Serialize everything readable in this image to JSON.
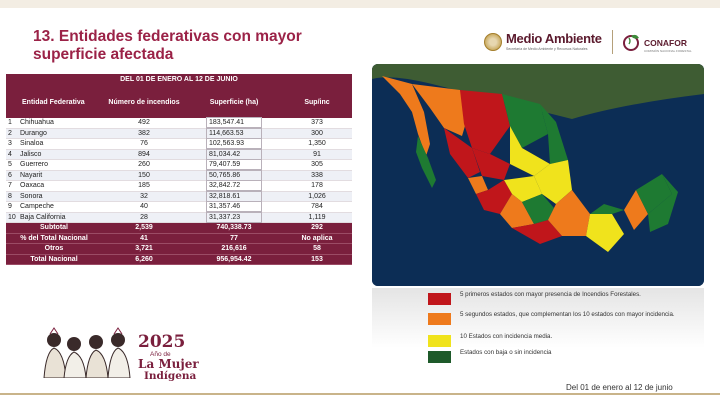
{
  "title": "13. Entidades federativas con mayor superficie afectada",
  "logos": {
    "medio_ambiente": "Medio Ambiente",
    "medio_ambiente_sub": "Secretaría de Medio Ambiente y Recursos Naturales",
    "conafor": "CONAFOR",
    "conafor_sub": "COMISIÓN NACIONAL FORESTAL"
  },
  "table": {
    "date_range": "DEL 01 DE ENERO AL 12 DE JUNIO",
    "headers": [
      "Entidad Federativa",
      "Número de incendios",
      "Superficie (ha)",
      "Sup/inc"
    ],
    "rows": [
      {
        "rank": "1",
        "state": "Chihuahua",
        "fires": "492",
        "area": "183,547.41",
        "ratio": "373"
      },
      {
        "rank": "2",
        "state": "Durango",
        "fires": "382",
        "area": "114,663.53",
        "ratio": "300"
      },
      {
        "rank": "3",
        "state": "Sinaloa",
        "fires": "76",
        "area": "102,563.93",
        "ratio": "1,350"
      },
      {
        "rank": "4",
        "state": "Jalisco",
        "fires": "894",
        "area": "81,034.42",
        "ratio": "91"
      },
      {
        "rank": "5",
        "state": "Guerrero",
        "fires": "260",
        "area": "79,407.59",
        "ratio": "305"
      },
      {
        "rank": "6",
        "state": "Nayarit",
        "fires": "150",
        "area": "50,765.86",
        "ratio": "338"
      },
      {
        "rank": "7",
        "state": "Oaxaca",
        "fires": "185",
        "area": "32,842.72",
        "ratio": "178"
      },
      {
        "rank": "8",
        "state": "Sonora",
        "fires": "32",
        "area": "32,818.61",
        "ratio": "1,026"
      },
      {
        "rank": "9",
        "state": "Campeche",
        "fires": "40",
        "area": "31,357.46",
        "ratio": "784"
      },
      {
        "rank": "10",
        "state": "Baja California",
        "fires": "28",
        "area": "31,337.23",
        "ratio": "1,119"
      }
    ],
    "summary": [
      {
        "label": "Subtotal",
        "fires": "2,539",
        "area": "740,338.73",
        "ratio": "292"
      },
      {
        "label": "% del Total Nacional",
        "fires": "41",
        "area": "77",
        "ratio": "No aplica"
      },
      {
        "label": "Otros",
        "fires": "3,721",
        "area": "216,616",
        "ratio": "58"
      },
      {
        "label": "Total Nacional",
        "fires": "6,260",
        "area": "956,954.42",
        "ratio": "153"
      }
    ]
  },
  "map": {
    "colors": {
      "sea": "#0c2d55",
      "red": "#c0161b",
      "orange": "#ee7a1c",
      "yellow": "#f0e31c",
      "green": "#1e7a32",
      "land": "#3c5a2a"
    }
  },
  "legend": [
    {
      "color": "#c0161b",
      "text": "5 primeros estados con mayor presencia de Incendios Forestales."
    },
    {
      "color": "#ee7a1c",
      "text": "5 segundos estados, que complementan los 10 estados con mayor incidencia."
    },
    {
      "color": "#f0e31c",
      "text": "10 Estados con incidencia media."
    },
    {
      "color": "#1e5a2a",
      "text": "Estados con baja o sin incidencia"
    }
  ],
  "footer": {
    "year": "2025",
    "ano": "Año de",
    "mujer": "La Mujer",
    "indigena": "Indígena",
    "date": "Del 01 de enero al 12 de junio"
  }
}
